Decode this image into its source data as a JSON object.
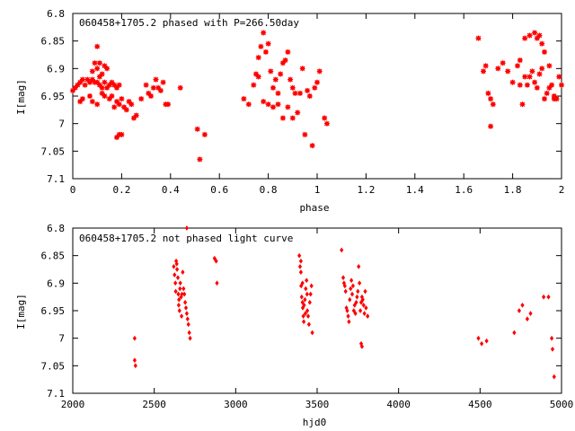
{
  "chart_data": [
    {
      "type": "scatter",
      "title": "060458+1705.2 phased with P=266.50day",
      "xlabel": "phase",
      "ylabel": "I[mag]",
      "xlim": [
        0,
        2
      ],
      "ylim": [
        7.1,
        6.8
      ],
      "y_inverted": true,
      "x_ticks": [
        "0",
        "0.2",
        "0.4",
        "0.6",
        "0.8",
        "1",
        "1.2",
        "1.4",
        "1.6",
        "1.8",
        "2"
      ],
      "y_ticks": [
        "6.8",
        "6.85",
        "6.9",
        "6.95",
        "7",
        "7.05",
        "7.1"
      ],
      "marker": "star",
      "color": "#ff0000",
      "grid": false,
      "points": [
        [
          0.0,
          6.94
        ],
        [
          0.01,
          6.935
        ],
        [
          0.02,
          6.93
        ],
        [
          0.03,
          6.925
        ],
        [
          0.04,
          6.92
        ],
        [
          0.05,
          6.93
        ],
        [
          0.06,
          6.92
        ],
        [
          0.07,
          6.925
        ],
        [
          0.08,
          6.92
        ],
        [
          0.09,
          6.925
        ],
        [
          0.1,
          6.925
        ],
        [
          0.11,
          6.93
        ],
        [
          0.12,
          6.935
        ],
        [
          0.13,
          6.925
        ],
        [
          0.14,
          6.935
        ],
        [
          0.15,
          6.93
        ],
        [
          0.16,
          6.925
        ],
        [
          0.17,
          6.93
        ],
        [
          0.18,
          6.935
        ],
        [
          0.19,
          6.93
        ],
        [
          0.03,
          6.96
        ],
        [
          0.04,
          6.955
        ],
        [
          0.07,
          6.95
        ],
        [
          0.08,
          6.96
        ],
        [
          0.1,
          6.965
        ],
        [
          0.12,
          6.945
        ],
        [
          0.13,
          6.95
        ],
        [
          0.15,
          6.955
        ],
        [
          0.16,
          6.95
        ],
        [
          0.09,
          6.89
        ],
        [
          0.1,
          6.9
        ],
        [
          0.11,
          6.89
        ],
        [
          0.12,
          6.91
        ],
        [
          0.13,
          6.895
        ],
        [
          0.14,
          6.9
        ],
        [
          0.1,
          6.86
        ],
        [
          0.08,
          6.905
        ],
        [
          0.11,
          6.915
        ],
        [
          0.18,
          6.96
        ],
        [
          0.19,
          6.965
        ],
        [
          0.2,
          6.955
        ],
        [
          0.21,
          6.97
        ],
        [
          0.22,
          6.975
        ],
        [
          0.23,
          6.96
        ],
        [
          0.24,
          6.965
        ],
        [
          0.25,
          6.99
        ],
        [
          0.26,
          6.985
        ],
        [
          0.17,
          6.97
        ],
        [
          0.18,
          7.025
        ],
        [
          0.19,
          7.02
        ],
        [
          0.2,
          7.02
        ],
        [
          0.28,
          6.955
        ],
        [
          0.3,
          6.93
        ],
        [
          0.31,
          6.945
        ],
        [
          0.32,
          6.95
        ],
        [
          0.33,
          6.935
        ],
        [
          0.34,
          6.92
        ],
        [
          0.35,
          6.935
        ],
        [
          0.36,
          6.94
        ],
        [
          0.37,
          6.925
        ],
        [
          0.38,
          6.965
        ],
        [
          0.39,
          6.965
        ],
        [
          0.44,
          6.935
        ],
        [
          0.51,
          7.01
        ],
        [
          0.52,
          7.065
        ],
        [
          0.54,
          7.02
        ],
        [
          0.7,
          6.955
        ],
        [
          0.72,
          6.965
        ],
        [
          0.74,
          6.93
        ],
        [
          0.75,
          6.91
        ],
        [
          0.76,
          6.88
        ],
        [
          0.77,
          6.86
        ],
        [
          0.78,
          6.835
        ],
        [
          0.79,
          6.87
        ],
        [
          0.8,
          6.855
        ],
        [
          0.81,
          6.905
        ],
        [
          0.82,
          6.935
        ],
        [
          0.83,
          6.92
        ],
        [
          0.84,
          6.945
        ],
        [
          0.85,
          6.91
        ],
        [
          0.86,
          6.89
        ],
        [
          0.87,
          6.885
        ],
        [
          0.88,
          6.87
        ],
        [
          0.89,
          6.92
        ],
        [
          0.9,
          6.935
        ],
        [
          0.91,
          6.945
        ],
        [
          0.92,
          6.98
        ],
        [
          0.93,
          6.945
        ],
        [
          0.94,
          6.9
        ],
        [
          0.95,
          7.02
        ],
        [
          0.96,
          6.94
        ],
        [
          0.97,
          6.95
        ],
        [
          0.98,
          7.04
        ],
        [
          0.99,
          6.935
        ],
        [
          1.0,
          6.925
        ],
        [
          1.01,
          6.905
        ],
        [
          0.76,
          6.915
        ],
        [
          0.78,
          6.96
        ],
        [
          0.8,
          6.965
        ],
        [
          0.82,
          6.97
        ],
        [
          0.84,
          6.965
        ],
        [
          0.86,
          6.99
        ],
        [
          0.88,
          6.97
        ],
        [
          0.9,
          6.99
        ],
        [
          1.03,
          6.99
        ],
        [
          1.04,
          7.0
        ],
        [
          1.66,
          6.845
        ],
        [
          1.68,
          6.905
        ],
        [
          1.69,
          6.895
        ],
        [
          1.7,
          6.945
        ],
        [
          1.71,
          6.955
        ],
        [
          1.72,
          6.965
        ],
        [
          1.71,
          7.005
        ],
        [
          1.74,
          6.9
        ],
        [
          1.76,
          6.89
        ],
        [
          1.78,
          6.905
        ],
        [
          1.8,
          6.925
        ],
        [
          1.82,
          6.895
        ],
        [
          1.83,
          6.93
        ],
        [
          1.84,
          6.965
        ],
        [
          1.85,
          6.915
        ],
        [
          1.86,
          6.93
        ],
        [
          1.87,
          6.915
        ],
        [
          1.88,
          6.905
        ],
        [
          1.89,
          6.925
        ],
        [
          1.9,
          6.935
        ],
        [
          1.91,
          6.91
        ],
        [
          1.92,
          6.9
        ],
        [
          1.93,
          6.955
        ],
        [
          1.94,
          6.945
        ],
        [
          1.95,
          6.935
        ],
        [
          1.96,
          6.93
        ],
        [
          1.97,
          6.955
        ],
        [
          1.98,
          6.955
        ],
        [
          1.99,
          6.915
        ],
        [
          2.0,
          6.93
        ],
        [
          1.83,
          6.885
        ],
        [
          1.85,
          6.845
        ],
        [
          1.87,
          6.84
        ],
        [
          1.89,
          6.835
        ],
        [
          1.9,
          6.845
        ],
        [
          1.91,
          6.84
        ],
        [
          1.92,
          6.855
        ],
        [
          1.93,
          6.87
        ],
        [
          1.95,
          6.895
        ],
        [
          1.97,
          6.95
        ]
      ]
    },
    {
      "type": "scatter",
      "title": "060458+1705.2 not phased light curve",
      "xlabel": "hjd0",
      "ylabel": "I[mag]",
      "xlim": [
        2000,
        5000
      ],
      "ylim": [
        7.1,
        6.8
      ],
      "y_inverted": true,
      "x_ticks": [
        "2000",
        "2500",
        "3000",
        "3500",
        "4000",
        "4500",
        "5000"
      ],
      "y_ticks": [
        "6.8",
        "6.85",
        "6.9",
        "6.95",
        "7",
        "7.05",
        "7.1"
      ],
      "marker": "diamond",
      "color": "#ff0000",
      "grid": false,
      "points": [
        [
          2380,
          7.0
        ],
        [
          2380,
          7.04
        ],
        [
          2385,
          7.05
        ],
        [
          2620,
          6.87
        ],
        [
          2625,
          6.885
        ],
        [
          2630,
          6.9
        ],
        [
          2632,
          6.915
        ],
        [
          2635,
          6.86
        ],
        [
          2638,
          6.865
        ],
        [
          2640,
          6.875
        ],
        [
          2645,
          6.89
        ],
        [
          2648,
          6.92
        ],
        [
          2650,
          6.94
        ],
        [
          2652,
          6.93
        ],
        [
          2655,
          6.95
        ],
        [
          2658,
          6.91
        ],
        [
          2660,
          6.9
        ],
        [
          2665,
          6.925
        ],
        [
          2668,
          6.96
        ],
        [
          2670,
          6.92
        ],
        [
          2675,
          6.88
        ],
        [
          2680,
          6.91
        ],
        [
          2685,
          6.92
        ],
        [
          2690,
          6.935
        ],
        [
          2695,
          6.945
        ],
        [
          2700,
          6.955
        ],
        [
          2705,
          6.965
        ],
        [
          2710,
          6.975
        ],
        [
          2715,
          6.99
        ],
        [
          2720,
          7.0
        ],
        [
          2700,
          6.8
        ],
        [
          2870,
          6.855
        ],
        [
          2880,
          6.86
        ],
        [
          2885,
          6.9
        ],
        [
          3390,
          6.85
        ],
        [
          3395,
          6.87
        ],
        [
          3400,
          6.88
        ],
        [
          3402,
          6.905
        ],
        [
          3405,
          6.925
        ],
        [
          3410,
          6.935
        ],
        [
          3412,
          6.945
        ],
        [
          3415,
          6.96
        ],
        [
          3418,
          6.97
        ],
        [
          3420,
          6.94
        ],
        [
          3425,
          6.93
        ],
        [
          3428,
          6.955
        ],
        [
          3430,
          6.91
        ],
        [
          3435,
          6.895
        ],
        [
          3438,
          6.92
        ],
        [
          3440,
          6.95
        ],
        [
          3445,
          6.96
        ],
        [
          3450,
          6.975
        ],
        [
          3455,
          6.935
        ],
        [
          3460,
          6.92
        ],
        [
          3465,
          6.905
        ],
        [
          3470,
          6.99
        ],
        [
          3400,
          6.86
        ],
        [
          3410,
          6.9
        ],
        [
          3650,
          6.84
        ],
        [
          3660,
          6.89
        ],
        [
          3665,
          6.9
        ],
        [
          3670,
          6.905
        ],
        [
          3675,
          6.915
        ],
        [
          3680,
          6.945
        ],
        [
          3685,
          6.95
        ],
        [
          3690,
          6.96
        ],
        [
          3695,
          6.97
        ],
        [
          3700,
          6.93
        ],
        [
          3705,
          6.91
        ],
        [
          3710,
          6.895
        ],
        [
          3715,
          6.92
        ],
        [
          3720,
          6.905
        ],
        [
          3725,
          6.95
        ],
        [
          3730,
          6.94
        ],
        [
          3735,
          6.955
        ],
        [
          3740,
          6.935
        ],
        [
          3745,
          6.925
        ],
        [
          3750,
          6.915
        ],
        [
          3755,
          6.87
        ],
        [
          3760,
          6.9
        ],
        [
          3765,
          6.95
        ],
        [
          3770,
          6.935
        ],
        [
          3775,
          6.925
        ],
        [
          3780,
          6.93
        ],
        [
          3785,
          6.94
        ],
        [
          3790,
          6.955
        ],
        [
          3795,
          6.915
        ],
        [
          3800,
          6.945
        ],
        [
          3810,
          6.96
        ],
        [
          3770,
          7.01
        ],
        [
          3775,
          7.015
        ],
        [
          4490,
          7.0
        ],
        [
          4510,
          7.01
        ],
        [
          4540,
          7.005
        ],
        [
          4710,
          6.99
        ],
        [
          4740,
          6.95
        ],
        [
          4760,
          6.94
        ],
        [
          4790,
          6.965
        ],
        [
          4810,
          6.955
        ],
        [
          4890,
          6.925
        ],
        [
          4920,
          6.925
        ],
        [
          4940,
          7.0
        ],
        [
          4945,
          7.02
        ],
        [
          4955,
          7.07
        ]
      ]
    }
  ]
}
